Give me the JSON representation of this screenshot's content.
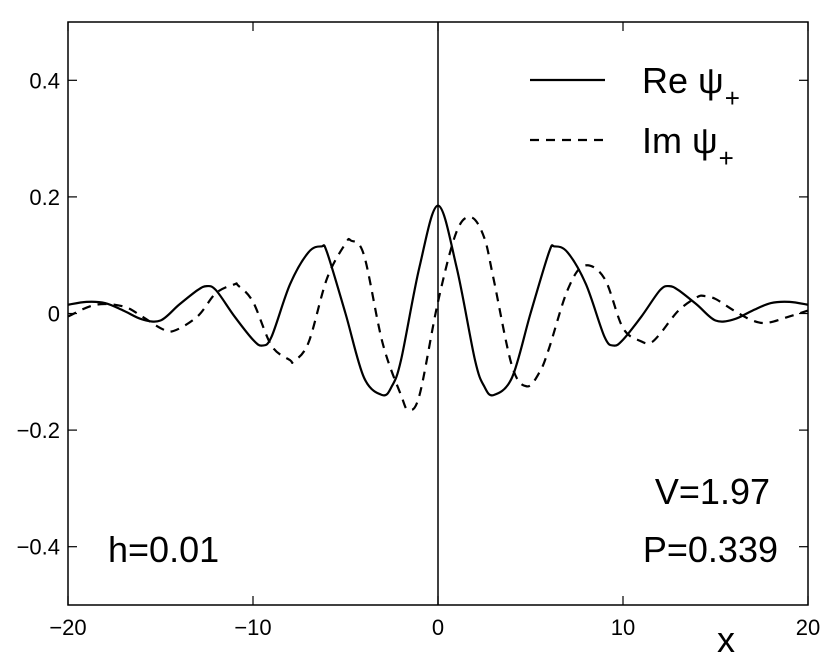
{
  "chart_data": {
    "type": "line",
    "xlabel": "x",
    "ylabel": "",
    "xlim": [
      -20,
      20
    ],
    "ylim": [
      -0.5,
      0.5
    ],
    "xticks": [
      -20,
      -10,
      0,
      10,
      20
    ],
    "xtick_labels": [
      "−20",
      "−10",
      "0",
      "10",
      "20"
    ],
    "yticks": [
      -0.4,
      -0.2,
      0,
      0.2,
      0.4
    ],
    "ytick_labels": [
      "−0.4",
      "−0.2",
      "0",
      "0.2",
      "0.4"
    ],
    "grid": false,
    "legend": "top-right",
    "vertical_line_x": 0,
    "annotations": {
      "h": "h=0.01",
      "V": "V=1.97",
      "P": "P=0.339"
    },
    "series": [
      {
        "name": "Re ψ",
        "subscript": "+",
        "style": "solid",
        "x": [
          -20,
          -19,
          -18,
          -17,
          -16,
          -15,
          -14,
          -13,
          -12.5,
          -12,
          -11,
          -10,
          -9.5,
          -9,
          -8,
          -7,
          -6.3,
          -6,
          -5,
          -4,
          -3,
          -2.5,
          -2,
          -1,
          0,
          1,
          2,
          2.5,
          3,
          4,
          5,
          6,
          6.3,
          7,
          8,
          9,
          9.5,
          10,
          11,
          12,
          12.5,
          13,
          14,
          15,
          16,
          17,
          18,
          19,
          20
        ],
        "values": [
          0.015,
          0.02,
          0.018,
          0.005,
          -0.01,
          -0.012,
          0.015,
          0.04,
          0.047,
          0.04,
          -0.005,
          -0.045,
          -0.055,
          -0.04,
          0.05,
          0.105,
          0.115,
          0.105,
          0.0,
          -0.11,
          -0.14,
          -0.125,
          -0.08,
          0.08,
          0.185,
          0.08,
          -0.08,
          -0.125,
          -0.14,
          -0.11,
          0.0,
          0.105,
          0.115,
          0.105,
          0.05,
          -0.04,
          -0.055,
          -0.045,
          -0.005,
          0.04,
          0.047,
          0.04,
          0.015,
          -0.012,
          -0.01,
          0.005,
          0.018,
          0.02,
          0.015
        ]
      },
      {
        "name": "Im ψ",
        "subscript": "+",
        "style": "dashed",
        "x": [
          -20,
          -18.5,
          -17,
          -16,
          -15,
          -14.3,
          -13,
          -12,
          -11,
          -10.8,
          -10,
          -9,
          -8,
          -7.8,
          -7,
          -6,
          -5,
          -4.7,
          -4,
          -3,
          -2,
          -1.6,
          -1,
          0,
          1,
          1.8,
          2.5,
          3,
          4,
          4.8,
          5.5,
          6,
          7,
          7.9,
          9,
          10,
          11,
          11.5,
          12,
          13,
          14,
          14.4,
          15,
          16,
          17,
          17.8,
          19,
          20
        ],
        "values": [
          -0.005,
          0.015,
          0.012,
          -0.005,
          -0.025,
          -0.03,
          -0.005,
          0.035,
          0.05,
          0.048,
          0.02,
          -0.055,
          -0.08,
          -0.082,
          -0.05,
          0.06,
          0.12,
          0.125,
          0.1,
          -0.05,
          -0.14,
          -0.165,
          -0.14,
          0.02,
          0.14,
          0.165,
          0.13,
          0.06,
          -0.09,
          -0.125,
          -0.1,
          -0.06,
          0.04,
          0.082,
          0.06,
          -0.025,
          -0.048,
          -0.05,
          -0.035,
          0.005,
          0.028,
          0.03,
          0.025,
          0.005,
          -0.012,
          -0.016,
          -0.005,
          0.005
        ]
      }
    ]
  }
}
